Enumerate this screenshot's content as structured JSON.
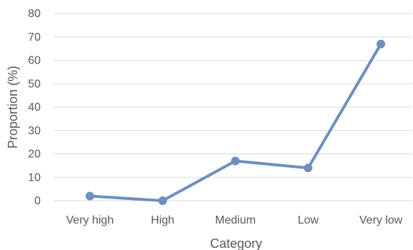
{
  "chart_data": {
    "type": "line",
    "categories": [
      "Very high",
      "High",
      "Medium",
      "Low",
      "Very low"
    ],
    "series": [
      {
        "values": [
          2,
          0,
          17,
          14,
          67
        ]
      }
    ],
    "xlabel": "Category",
    "ylabel": "Proportion (%)",
    "ylim": [
      0,
      80
    ],
    "yticks": [
      0,
      10,
      20,
      30,
      40,
      50,
      60,
      70,
      80
    ],
    "grid": true,
    "legend": "none",
    "colors": {
      "series": "#6e8fbf",
      "grid": "#d9d9d9",
      "text": "#595959"
    }
  }
}
